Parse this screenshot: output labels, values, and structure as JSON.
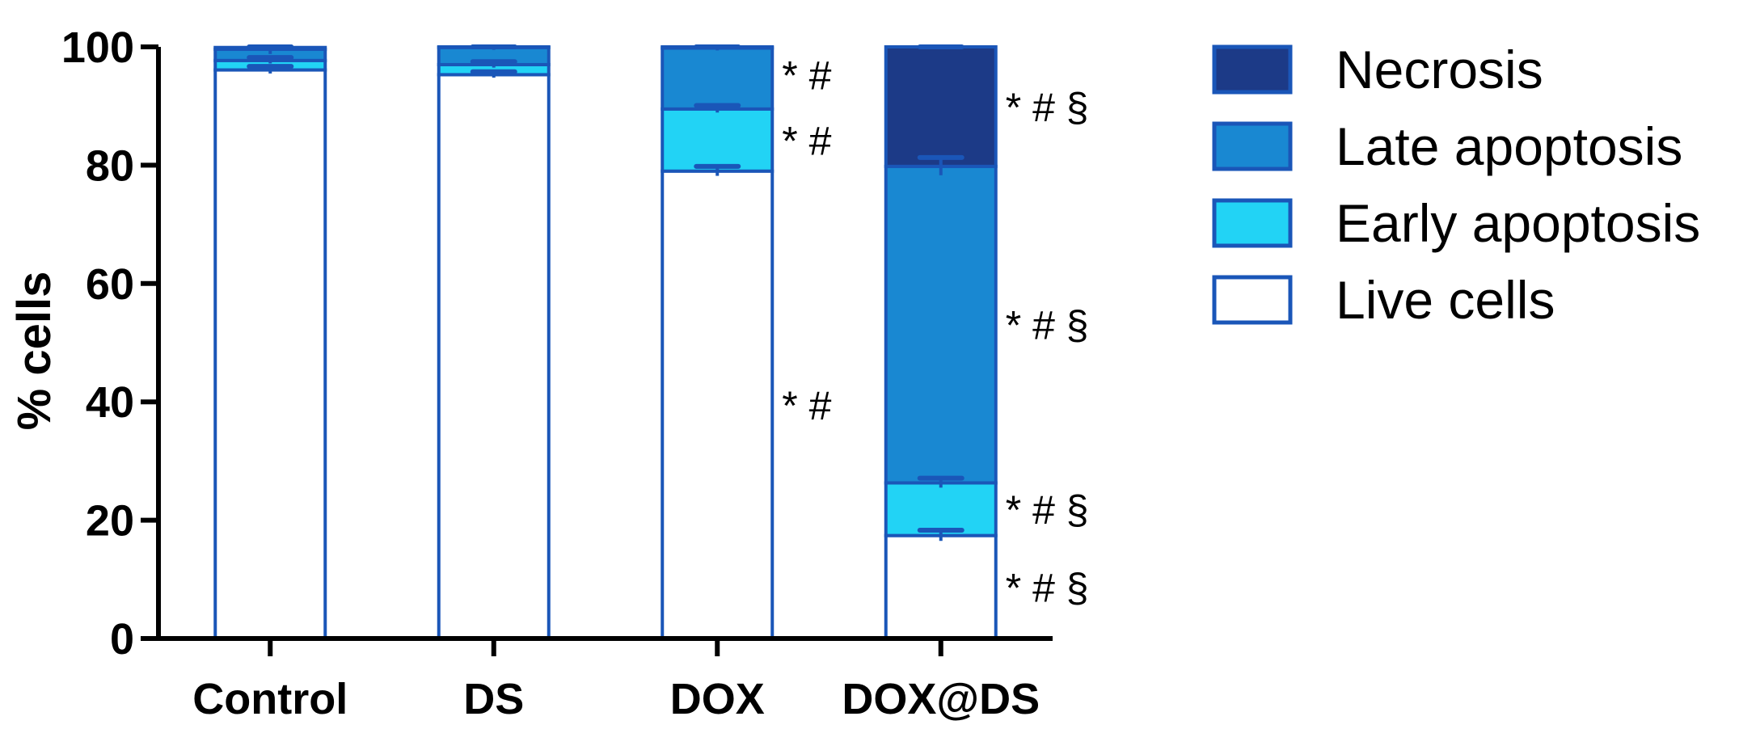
{
  "chart_data": {
    "type": "bar",
    "stacked": true,
    "title": "",
    "xlabel": "",
    "ylabel": "% cells",
    "ylim": [
      0,
      100
    ],
    "yticks": [
      0,
      20,
      40,
      60,
      80,
      100
    ],
    "grid": false,
    "legend_position": "right",
    "categories": [
      "Control",
      "DS",
      "DOX",
      "DOX@DS"
    ],
    "series": [
      {
        "name": "Live cells",
        "color": "#ffffff",
        "values": [
          96.1,
          95.3,
          79.0,
          17.4
        ],
        "errors": [
          0.6,
          0.5,
          0.8,
          0.9
        ]
      },
      {
        "name": "Early apoptosis",
        "color": "#22d3f5",
        "values": [
          1.6,
          1.7,
          10.5,
          8.9
        ],
        "errors": [
          0.5,
          0.5,
          0.6,
          0.8
        ]
      },
      {
        "name": "Late apoptosis",
        "color": "#1988d2",
        "values": [
          1.9,
          2.9,
          10.3,
          53.5
        ],
        "errors": [
          0.8,
          0.4,
          0.4,
          1.5
        ]
      },
      {
        "name": "Necrosis",
        "color": "#1c3a87",
        "values": [
          0.3,
          0.1,
          0.2,
          20.2
        ],
        "errors": [
          0.2,
          0.2,
          0.2,
          0.2
        ]
      }
    ],
    "legend_order": [
      "Necrosis",
      "Late apoptosis",
      "Early apoptosis",
      "Live cells"
    ],
    "edge_color": "#1a56b8",
    "annotations": [
      {
        "category": "DOX",
        "series": "Late apoptosis",
        "text": "* #"
      },
      {
        "category": "DOX",
        "series": "Early apoptosis",
        "text": "* #"
      },
      {
        "category": "DOX",
        "series": "Live cells",
        "text": "* #"
      },
      {
        "category": "DOX@DS",
        "series": "Necrosis",
        "text": "* # §"
      },
      {
        "category": "DOX@DS",
        "series": "Late apoptosis",
        "text": "* # §"
      },
      {
        "category": "DOX@DS",
        "series": "Early apoptosis",
        "text": "* # §"
      },
      {
        "category": "DOX@DS",
        "series": "Live cells",
        "text": "* # §"
      }
    ]
  }
}
